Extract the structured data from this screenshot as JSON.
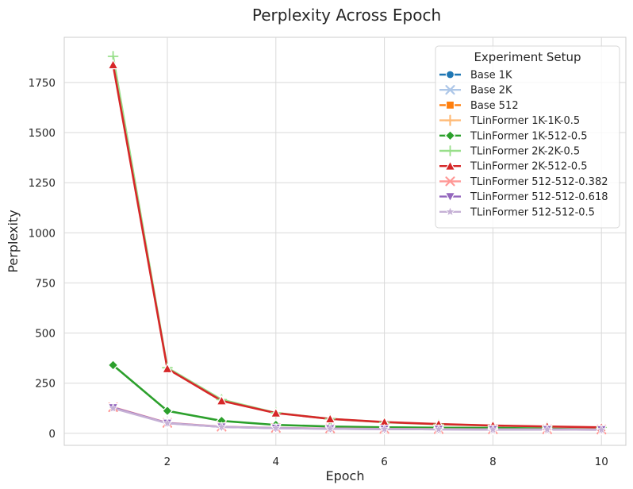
{
  "chart_data": {
    "type": "line",
    "title": "Perplexity Across Epoch",
    "xlabel": "Epoch",
    "ylabel": "Perplexity",
    "xlim": [
      0.1,
      10.45
    ],
    "ylim": [
      -60,
      1975
    ],
    "x_ticks": [
      2,
      4,
      6,
      8,
      10
    ],
    "y_ticks": [
      0,
      250,
      500,
      750,
      1000,
      1250,
      1500,
      1750
    ],
    "grid": true,
    "legend": {
      "title": "Experiment Setup",
      "placement": "top-right"
    },
    "x": [
      1,
      2,
      3,
      4,
      5,
      6,
      7,
      8,
      9,
      10
    ],
    "series": [
      {
        "name": "Base 1K",
        "color": "#1f77b4",
        "marker": "circle",
        "values": [
          null,
          null,
          null,
          null,
          null,
          null,
          null,
          null,
          null,
          null
        ]
      },
      {
        "name": "Base 2K",
        "color": "#aec7e8",
        "marker": "x",
        "values": [
          null,
          null,
          null,
          null,
          null,
          null,
          null,
          null,
          null,
          null
        ]
      },
      {
        "name": "Base 512",
        "color": "#ff7f0e",
        "marker": "square",
        "values": [
          null,
          null,
          null,
          null,
          null,
          null,
          null,
          null,
          null,
          null
        ]
      },
      {
        "name": "TLinFormer 1K-1K-0.5",
        "color": "#ffbb78",
        "marker": "plus",
        "values": [
          null,
          null,
          null,
          null,
          null,
          null,
          null,
          null,
          null,
          null
        ]
      },
      {
        "name": "TLinFormer 1K-512-0.5",
        "color": "#2ca02c",
        "marker": "diamond",
        "values": [
          340,
          112,
          62,
          42,
          34,
          30,
          28,
          27,
          26,
          25
        ]
      },
      {
        "name": "TLinFormer 2K-2K-0.5",
        "color": "#98df8a",
        "marker": "thin-plus",
        "values": [
          1880,
          327,
          168,
          102,
          72,
          55,
          45,
          38,
          33,
          29
        ]
      },
      {
        "name": "TLinFormer 2K-512-0.5",
        "color": "#d62728",
        "marker": "triangle-up",
        "values": [
          1838,
          322,
          162,
          101,
          72,
          56,
          46,
          39,
          34,
          30
        ]
      },
      {
        "name": "TLinFormer 512-512-0.382",
        "color": "#ff9896",
        "marker": "x",
        "values": [
          130,
          52,
          33,
          27,
          24,
          22,
          21,
          20,
          20,
          19
        ]
      },
      {
        "name": "TLinFormer 512-512-0.618",
        "color": "#9467bd",
        "marker": "triangle-down",
        "values": [
          128,
          51,
          32,
          26,
          23,
          21,
          20,
          19,
          19,
          18
        ]
      },
      {
        "name": "TLinFormer 512-512-0.5",
        "color": "#c5b0d5",
        "marker": "star",
        "values": [
          125,
          50,
          32,
          26,
          23,
          21,
          20,
          19,
          19,
          18
        ]
      }
    ]
  }
}
